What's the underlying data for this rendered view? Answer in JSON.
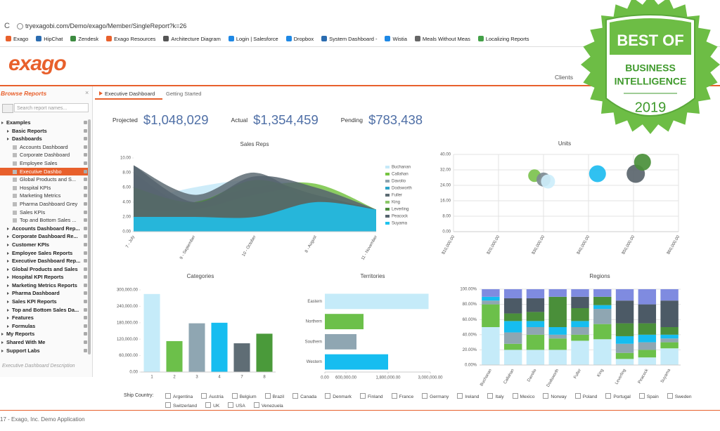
{
  "browser": {
    "url": "tryexagobi.com/Demo/exago/Member/SingleReport?k=26",
    "bookmarks": [
      "Exago",
      "HipChat",
      "Zendesk",
      "Exago Resources",
      "Architecture Diagram",
      "Login | Salesforce",
      "Dropbox",
      "System Dashboard -",
      "Wistia",
      "Meals Without Meas",
      "Localizing Reports"
    ]
  },
  "header": {
    "logo": "exago",
    "nav": [
      "Clients"
    ]
  },
  "sidebar": {
    "title": "Browse Reports",
    "search_placeholder": "Search report names...",
    "description": "Executive Dashboard Description",
    "tree": [
      {
        "label": "Examples",
        "kind": "folder",
        "children": [
          {
            "label": "Basic Reports",
            "kind": "folder"
          },
          {
            "label": "Dashboards",
            "kind": "folder",
            "children": [
              {
                "label": "Accounts Dashboard",
                "kind": "report"
              },
              {
                "label": "Corporate Dashboard",
                "kind": "report"
              },
              {
                "label": "Employee Sales",
                "kind": "report"
              },
              {
                "label": "Executive Dashbo",
                "kind": "report",
                "selected": true
              },
              {
                "label": "Global Products and S...",
                "kind": "report"
              },
              {
                "label": "Hospital KPIs",
                "kind": "report"
              },
              {
                "label": "Marketing Metrics",
                "kind": "report"
              },
              {
                "label": "Pharma Dashboard Grey",
                "kind": "report"
              },
              {
                "label": "Sales KPIs",
                "kind": "report"
              },
              {
                "label": "Top and Bottom Sales ...",
                "kind": "report"
              }
            ]
          },
          {
            "label": "Accounts Dashboard Rep...",
            "kind": "folder"
          },
          {
            "label": "Corporate Dashboard Re...",
            "kind": "folder"
          },
          {
            "label": "Customer KPIs",
            "kind": "folder"
          },
          {
            "label": "Employee Sales Reports",
            "kind": "folder"
          },
          {
            "label": "Executive Dashboard Rep...",
            "kind": "folder"
          },
          {
            "label": "Global Products and Sales",
            "kind": "folder"
          },
          {
            "label": "Hospital KPI Reports",
            "kind": "folder"
          },
          {
            "label": "Marketing Metrics Reports",
            "kind": "folder"
          },
          {
            "label": "Pharma Dashboard",
            "kind": "folder"
          },
          {
            "label": "Sales KPI Reports",
            "kind": "folder"
          },
          {
            "label": "Top and Bottom Sales Da...",
            "kind": "folder"
          },
          {
            "label": "Features",
            "kind": "folder"
          },
          {
            "label": "Formulas",
            "kind": "folder"
          }
        ]
      },
      {
        "label": "My Reports",
        "kind": "folder"
      },
      {
        "label": "Shared With Me",
        "kind": "folder"
      },
      {
        "label": "Support Labs",
        "kind": "folder"
      }
    ]
  },
  "tabs": [
    "Executive Dashboard",
    "Getting Started"
  ],
  "kpis": [
    {
      "label": "Projected",
      "value": "$1,048,029"
    },
    {
      "label": "Actual",
      "value": "$1,354,459"
    },
    {
      "label": "Pending",
      "value": "$783,438"
    }
  ],
  "chart_data": [
    {
      "type": "area",
      "title": "Sales Reps",
      "categories": [
        "7 - July",
        "9 - September",
        "10 - October",
        "8 - August",
        "11 - November"
      ],
      "ylim": [
        0,
        10
      ],
      "yticks": [
        {
          "value": 0,
          "label": "0.00"
        },
        {
          "value": 2,
          "label": "2.00"
        },
        {
          "value": 4,
          "label": "4.00"
        },
        {
          "value": 6,
          "label": "6.00"
        },
        {
          "value": 8,
          "label": "8.00"
        },
        {
          "value": 10,
          "label": "10.00"
        }
      ],
      "legend": "right",
      "series": [
        {
          "name": "Buchanan",
          "color": "#c5e9f8",
          "values": [
            4,
            6,
            7,
            6,
            3
          ]
        },
        {
          "name": "Callahan",
          "color": "#76c442",
          "values": [
            2,
            4,
            6,
            6.5,
            3
          ]
        },
        {
          "name": "Davolio",
          "color": "#8fa3ae",
          "values": [
            8,
            3,
            5,
            5,
            3
          ]
        },
        {
          "name": "Dodsworth",
          "color": "#2aa5c9",
          "values": [
            2,
            2,
            2,
            2,
            3
          ]
        },
        {
          "name": "Fuller",
          "color": "#5d6b73",
          "values": [
            9,
            5,
            8,
            4,
            3
          ]
        },
        {
          "name": "King",
          "color": "#8cc868",
          "values": [
            3,
            3,
            5,
            6,
            3
          ]
        },
        {
          "name": "Leverling",
          "color": "#4c8c3c",
          "values": [
            6,
            4,
            7,
            5,
            3
          ]
        },
        {
          "name": "Peacock",
          "color": "#56646f",
          "values": [
            9,
            4,
            7.5,
            6,
            3
          ]
        },
        {
          "name": "Suyama",
          "color": "#1fc3ee",
          "values": [
            2,
            2,
            2,
            4,
            3
          ]
        }
      ]
    },
    {
      "type": "bubble",
      "title": "Units",
      "x": [
        28000,
        30000,
        31000,
        42000,
        50500,
        52000
      ],
      "values": [
        29,
        27,
        26,
        30,
        30,
        36
      ],
      "sizes": [
        9,
        10,
        10,
        12,
        13,
        12
      ],
      "colors": [
        "#7cc24e",
        "#7d8b93",
        "#cdeefb",
        "#1ebcf0",
        "#5a656c",
        "#4a8f3a"
      ],
      "xlim": [
        10000,
        60000
      ],
      "xticks": [
        {
          "value": 10000,
          "label": "$10,000.00"
        },
        {
          "value": 20000,
          "label": "$20,000.00"
        },
        {
          "value": 30000,
          "label": "$30,000.00"
        },
        {
          "value": 40000,
          "label": "$40,000.00"
        },
        {
          "value": 50000,
          "label": "$50,000.00"
        },
        {
          "value": 60000,
          "label": "$60,000.00"
        }
      ],
      "ylim": [
        0,
        40
      ],
      "yticks": [
        {
          "value": 0,
          "label": "0.00"
        },
        {
          "value": 8,
          "label": "8.00"
        },
        {
          "value": 16,
          "label": "16.00"
        },
        {
          "value": 24,
          "label": "24.00"
        },
        {
          "value": 32,
          "label": "32.00"
        },
        {
          "value": 40,
          "label": "40.00"
        }
      ],
      "grid": true
    },
    {
      "type": "bar",
      "title": "Categories",
      "categories": [
        "1",
        "2",
        "3",
        "4",
        "7",
        "8"
      ],
      "values": [
        285000,
        113000,
        178000,
        180000,
        105000,
        140000
      ],
      "colors": [
        "#c5ebf9",
        "#6cc04a",
        "#8fa6b2",
        "#16bdf0",
        "#5f6d75",
        "#4a9a3a"
      ],
      "ylim": [
        0,
        300000
      ],
      "yticks": [
        {
          "value": 0,
          "label": "0.00"
        },
        {
          "value": 60000,
          "label": "60,000.00"
        },
        {
          "value": 120000,
          "label": "120,000.00"
        },
        {
          "value": 180000,
          "label": "180,000.00"
        },
        {
          "value": 240000,
          "label": "240,000.00"
        },
        {
          "value": 300000,
          "label": "300,000.00"
        }
      ]
    },
    {
      "type": "barh",
      "title": "Territories",
      "categories": [
        "Eastern",
        "Northern",
        "Southern",
        "Western"
      ],
      "values": [
        2950000,
        1100000,
        900000,
        1800000
      ],
      "colors": [
        "#c5ebf9",
        "#6cc04a",
        "#8fa6b2",
        "#16bdf0"
      ],
      "xlim": [
        0,
        3000000
      ],
      "xticks": [
        {
          "value": 0,
          "label": "0.00"
        },
        {
          "value": 600000,
          "label": "600,000.00"
        },
        {
          "value": 1800000,
          "label": "1,800,000.00"
        },
        {
          "value": 3000000,
          "label": "3,000,000.00"
        }
      ]
    },
    {
      "type": "stacked_bar",
      "title": "Regions",
      "categories": [
        "Buchanan",
        "Callahan",
        "Davolio",
        "Dodsworth",
        "Fuller",
        "King",
        "Leverling",
        "Peacock",
        "Suyama"
      ],
      "ylim": [
        0,
        100
      ],
      "yticks": [
        {
          "value": 0,
          "label": "0.00%"
        },
        {
          "value": 20,
          "label": "20.00%"
        },
        {
          "value": 40,
          "label": "40.00%"
        },
        {
          "value": 60,
          "label": "60.00%"
        },
        {
          "value": 80,
          "label": "80.00%"
        },
        {
          "value": 100,
          "label": "100.00%"
        }
      ],
      "grid": true,
      "series": [
        {
          "color": "#c5ebf9",
          "values": [
            50,
            20,
            20,
            20,
            32,
            34,
            8,
            10,
            22
          ]
        },
        {
          "color": "#6cc04a",
          "values": [
            30,
            8,
            20,
            15,
            8,
            20,
            8,
            10,
            8
          ]
        },
        {
          "color": "#8fa6b2",
          "values": [
            5,
            15,
            10,
            5,
            10,
            20,
            12,
            10,
            5
          ]
        },
        {
          "color": "#16bdf0",
          "values": [
            5,
            15,
            8,
            10,
            8,
            5,
            10,
            10,
            5
          ]
        },
        {
          "color": "#4a8f3a",
          "values": [
            0,
            10,
            12,
            40,
            17,
            11,
            17,
            15,
            10
          ]
        },
        {
          "color": "#4c5a66",
          "values": [
            0,
            20,
            18,
            0,
            15,
            0,
            30,
            25,
            35
          ]
        },
        {
          "color": "#7f8be0",
          "values": [
            10,
            12,
            12,
            10,
            10,
            10,
            15,
            20,
            15
          ]
        }
      ]
    }
  ],
  "filter": {
    "label": "Ship Country:",
    "options": [
      "Argentina",
      "Austria",
      "Belgium",
      "Brazil",
      "Canada",
      "Denmark",
      "Finland",
      "France",
      "Germany",
      "Ireland",
      "Italy",
      "Mexico",
      "Norway",
      "Poland",
      "Portugal",
      "Spain",
      "Sweden",
      "Switzerland",
      "UK",
      "USA",
      "Venezuela"
    ]
  },
  "footer": "17 - Exago, Inc. Demo Application",
  "badge": [
    "BEST OF",
    "BUSINESS",
    "INTELLIGENCE",
    "2019"
  ]
}
